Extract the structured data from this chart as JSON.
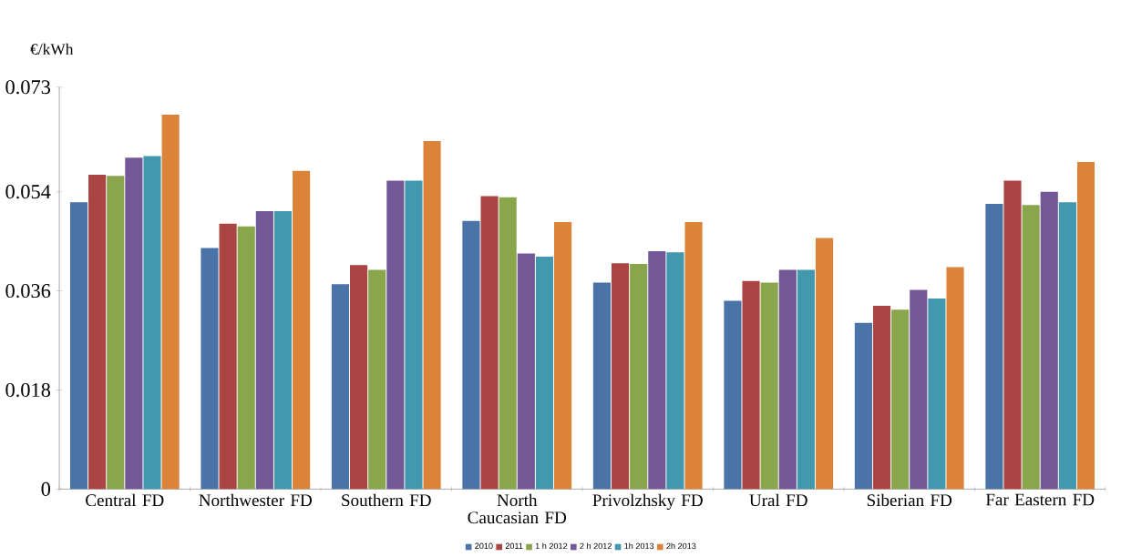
{
  "chart_data": {
    "type": "bar",
    "ylabel": "€/kWh",
    "categories": [
      "Central FD",
      "Northwester FD",
      "Southern FD",
      "North Caucasian FD",
      "Privolzhsky FD",
      "Ural FD",
      "Siberian FD",
      "Far Eastern FD"
    ],
    "series": [
      {
        "name": "2010",
        "color": "#4a73a8",
        "values": [
          0.0521,
          0.0438,
          0.0372,
          0.0487,
          0.0375,
          0.0342,
          0.0302,
          0.0518
        ]
      },
      {
        "name": "2011",
        "color": "#ab4543",
        "values": [
          0.0571,
          0.0482,
          0.0407,
          0.0532,
          0.041,
          0.0378,
          0.0333,
          0.056
        ]
      },
      {
        "name": "1 h 2012",
        "color": "#8aa64d",
        "values": [
          0.0569,
          0.0477,
          0.0398,
          0.053,
          0.0409,
          0.0375,
          0.0326,
          0.0516
        ]
      },
      {
        "name": "2 h 2012",
        "color": "#725896",
        "values": [
          0.0602,
          0.0505,
          0.056,
          0.0428,
          0.0432,
          0.0398,
          0.0362,
          0.054
        ]
      },
      {
        "name": "1h 2013",
        "color": "#4198af",
        "values": [
          0.0605,
          0.0505,
          0.056,
          0.0422,
          0.043,
          0.0398,
          0.0346,
          0.0521
        ]
      },
      {
        "name": "2h 2013",
        "color": "#db8439",
        "values": [
          0.068,
          0.0578,
          0.0632,
          0.0485,
          0.0485,
          0.0456,
          0.0403,
          0.0594
        ]
      }
    ],
    "ylim": [
      0,
      0.073
    ],
    "yticks": [
      0,
      0.018,
      0.036,
      0.054,
      0.073
    ],
    "legend": "bottom"
  }
}
